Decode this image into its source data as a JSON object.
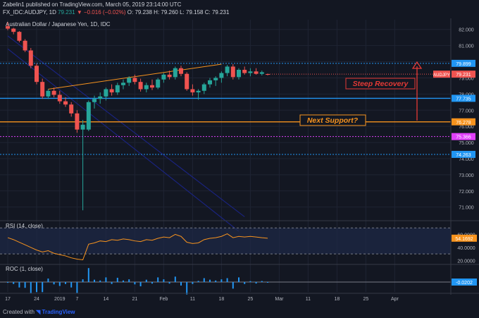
{
  "header": {
    "published_line": "Zabelin1 published on TradingView.com, March 05, 2019 23:14:00 UTC",
    "symbol": "FX_IDC:AUDJPY, 1D",
    "last": "79.231",
    "change": "▼ −0.016 (−0.02%)",
    "o": "O: 79.238",
    "h": "H: 79.260",
    "l": "L: 79.158",
    "c": "C: 79.231"
  },
  "footer": {
    "created_with": "Created with",
    "brand": "TradingView"
  },
  "colors": {
    "up": "#26a69a",
    "down": "#ef5350",
    "bg": "#131722",
    "grid": "#1f2433",
    "orange": "#f7931e",
    "blue": "#2196f3",
    "magenta": "#e040fb",
    "trend": "#1a237e",
    "annot": "#e53935"
  },
  "chart_data": [
    {
      "type": "candlestick",
      "title": "Australian Dollar / Japanese Yen, 1D, IDC",
      "symbol_tag": "AUDJPY",
      "last_value": "79.231",
      "y_ticks": [
        "82.000",
        "81.000",
        "80.000",
        "79.000",
        "78.000",
        "77.000",
        "76.000",
        "75.000",
        "74.000",
        "73.000",
        "72.000",
        "71.000"
      ],
      "ylim": [
        70.2,
        82.6
      ],
      "x_ticks": [
        {
          "label": "17",
          "i": 0
        },
        {
          "label": "24",
          "i": 5
        },
        {
          "label": "2019",
          "i": 9
        },
        {
          "label": "7",
          "i": 12
        },
        {
          "label": "14",
          "i": 17
        },
        {
          "label": "21",
          "i": 22
        },
        {
          "label": "Feb",
          "i": 27
        },
        {
          "label": "11",
          "i": 32
        },
        {
          "label": "18",
          "i": 37
        },
        {
          "label": "25",
          "i": 42
        },
        {
          "label": "Mar",
          "i": 47
        },
        {
          "label": "11",
          "i": 52
        },
        {
          "label": "18",
          "i": 57
        },
        {
          "label": "25",
          "i": 62
        },
        {
          "label": "Apr",
          "i": 67
        }
      ],
      "ohlc": [
        [
          82.2,
          82.45,
          81.95,
          82.05
        ],
        [
          82.05,
          82.1,
          81.7,
          81.85
        ],
        [
          81.85,
          81.9,
          81.2,
          81.3
        ],
        [
          81.3,
          81.4,
          80.6,
          80.7
        ],
        [
          80.7,
          80.85,
          79.6,
          79.75
        ],
        [
          79.75,
          79.9,
          78.6,
          78.75
        ],
        [
          78.75,
          78.95,
          77.7,
          77.85
        ],
        [
          77.85,
          78.3,
          77.7,
          78.2
        ],
        [
          78.2,
          78.4,
          77.8,
          77.95
        ],
        [
          77.95,
          78.2,
          77.4,
          77.55
        ],
        [
          77.55,
          77.8,
          77.2,
          77.35
        ],
        [
          77.35,
          77.5,
          76.6,
          76.8
        ],
        [
          76.8,
          77.0,
          75.6,
          75.8
        ],
        [
          75.8,
          76.4,
          70.8,
          76.1
        ],
        [
          75.8,
          77.6,
          75.7,
          77.5
        ],
        [
          77.5,
          77.9,
          77.1,
          77.7
        ],
        [
          77.7,
          78.1,
          77.4,
          77.85
        ],
        [
          77.85,
          78.4,
          77.6,
          78.3
        ],
        [
          78.3,
          78.6,
          77.9,
          78.1
        ],
        [
          78.1,
          78.7,
          77.95,
          78.55
        ],
        [
          78.55,
          78.9,
          78.3,
          78.7
        ],
        [
          78.7,
          79.1,
          78.5,
          79.0
        ],
        [
          79.0,
          79.2,
          78.6,
          78.75
        ],
        [
          78.75,
          78.95,
          78.15,
          78.3
        ],
        [
          78.3,
          78.7,
          78.1,
          78.55
        ],
        [
          78.55,
          78.9,
          78.25,
          78.4
        ],
        [
          78.4,
          79.0,
          78.3,
          78.9
        ],
        [
          78.9,
          79.3,
          78.7,
          79.2
        ],
        [
          79.2,
          79.45,
          78.9,
          79.05
        ],
        [
          79.05,
          79.7,
          78.9,
          79.6
        ],
        [
          79.6,
          79.75,
          79.1,
          79.25
        ],
        [
          79.25,
          79.35,
          78.2,
          78.3
        ],
        [
          78.3,
          78.6,
          77.9,
          78.1
        ],
        [
          78.1,
          78.3,
          77.65,
          78.2
        ],
        [
          78.2,
          78.7,
          78.0,
          78.6
        ],
        [
          78.6,
          79.0,
          78.4,
          78.85
        ],
        [
          78.85,
          79.1,
          78.5,
          79.0
        ],
        [
          79.0,
          79.4,
          78.7,
          79.3
        ],
        [
          79.3,
          79.8,
          79.1,
          79.7
        ],
        [
          79.7,
          79.85,
          78.9,
          79.05
        ],
        [
          79.05,
          79.6,
          78.9,
          79.5
        ],
        [
          79.5,
          79.7,
          79.2,
          79.3
        ],
        [
          79.3,
          79.6,
          79.1,
          79.4
        ],
        [
          79.4,
          79.6,
          79.2,
          79.25
        ],
        [
          79.25,
          79.45,
          79.15,
          79.35
        ],
        [
          79.238,
          79.26,
          79.158,
          79.231
        ]
      ],
      "levels": [
        {
          "label": "79.899",
          "value": 79.899,
          "kind": "dotted-blue"
        },
        {
          "label": "77.735",
          "value": 77.735,
          "kind": "solid-blue"
        },
        {
          "label": "76.278",
          "value": 76.278,
          "kind": "solid-orange"
        },
        {
          "label": "75.366",
          "value": 75.366,
          "kind": "dotted-magenta"
        },
        {
          "label": "74.263",
          "value": 74.263,
          "kind": "dotted-blue"
        }
      ],
      "annotations": [
        "Steep Recovery",
        "Next Support?"
      ]
    },
    {
      "type": "line",
      "title": "RSI (14, close)",
      "last_value": "54.1692",
      "y_ticks": [
        "60.0000",
        "40.0000",
        "20.0000"
      ],
      "ylim": [
        15,
        80
      ],
      "values": [
        55,
        52,
        48,
        44,
        40,
        36,
        33,
        35,
        31,
        29,
        27,
        24,
        22,
        21,
        45,
        47,
        50,
        49,
        52,
        51,
        53,
        52,
        50,
        49,
        52,
        51,
        54,
        56,
        55,
        60,
        57,
        48,
        46,
        47,
        52,
        54,
        55,
        57,
        61,
        55,
        57,
        56,
        57,
        56,
        55,
        54.2
      ]
    },
    {
      "type": "bar",
      "title": "ROC (1, close)",
      "last_value": "-0.0202",
      "values": [
        -0.1,
        -0.25,
        -0.7,
        -0.75,
        -1.45,
        -1.3,
        -1.3,
        0.45,
        -0.3,
        -0.5,
        -0.25,
        -0.7,
        -1.4,
        0.35,
        1.8,
        0.3,
        0.2,
        0.6,
        -0.25,
        0.55,
        0.2,
        0.35,
        -0.3,
        -0.55,
        0.3,
        -0.2,
        0.6,
        0.35,
        -0.2,
        0.7,
        -0.45,
        -1.6,
        -0.25,
        0.15,
        0.5,
        0.3,
        0.2,
        0.35,
        0.5,
        -0.85,
        0.6,
        -0.25,
        0.12,
        -0.19,
        0.13,
        -0.02
      ]
    }
  ]
}
